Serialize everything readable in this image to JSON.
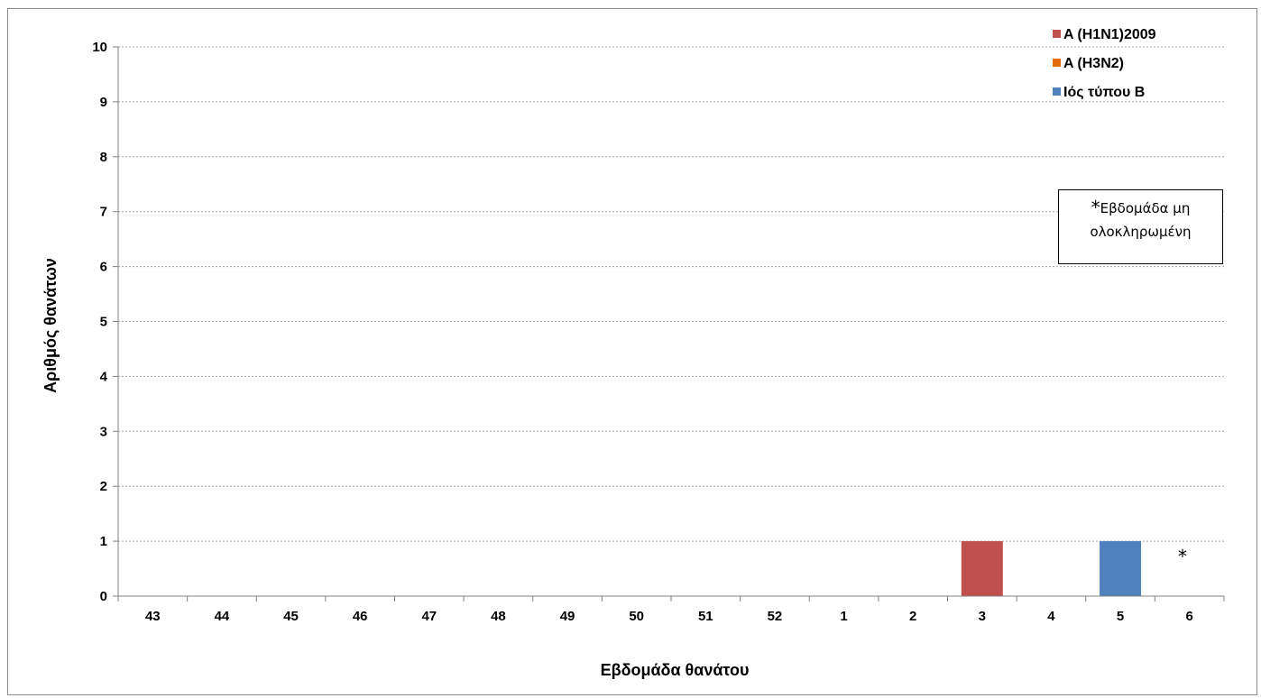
{
  "chart_data": {
    "type": "bar",
    "xlabel": "Εβδομάδα θανάτου",
    "ylabel": "Αριθμός θανάτων",
    "ylim": [
      0,
      10
    ],
    "yticks": [
      "0",
      "1",
      "2",
      "3",
      "4",
      "5",
      "6",
      "7",
      "8",
      "9",
      "10"
    ],
    "categories": [
      "43",
      "44",
      "45",
      "46",
      "47",
      "48",
      "49",
      "50",
      "51",
      "52",
      "1",
      "2",
      "3",
      "4",
      "5",
      "6"
    ],
    "series": [
      {
        "name": "A (H1N1)2009",
        "color": "#c0504d",
        "values": [
          0,
          0,
          0,
          0,
          0,
          0,
          0,
          0,
          0,
          0,
          0,
          0,
          1,
          0,
          0,
          0
        ]
      },
      {
        "name": "A (H3N2)",
        "color": "#e46c0a",
        "values": [
          0,
          0,
          0,
          0,
          0,
          0,
          0,
          0,
          0,
          0,
          0,
          0,
          0,
          0,
          0,
          0
        ]
      },
      {
        "name": "Ιός τύπου B",
        "color": "#4f81bd",
        "values": [
          0,
          0,
          0,
          0,
          0,
          0,
          0,
          0,
          0,
          0,
          0,
          0,
          0,
          0,
          1,
          0
        ]
      }
    ],
    "legend_position": "top-right",
    "grid": true,
    "note": {
      "star": "*",
      "text_line1": "Εβδομάδα μη",
      "text_line2": "ολοκληρωμένη"
    },
    "incomplete_marker": "*"
  }
}
